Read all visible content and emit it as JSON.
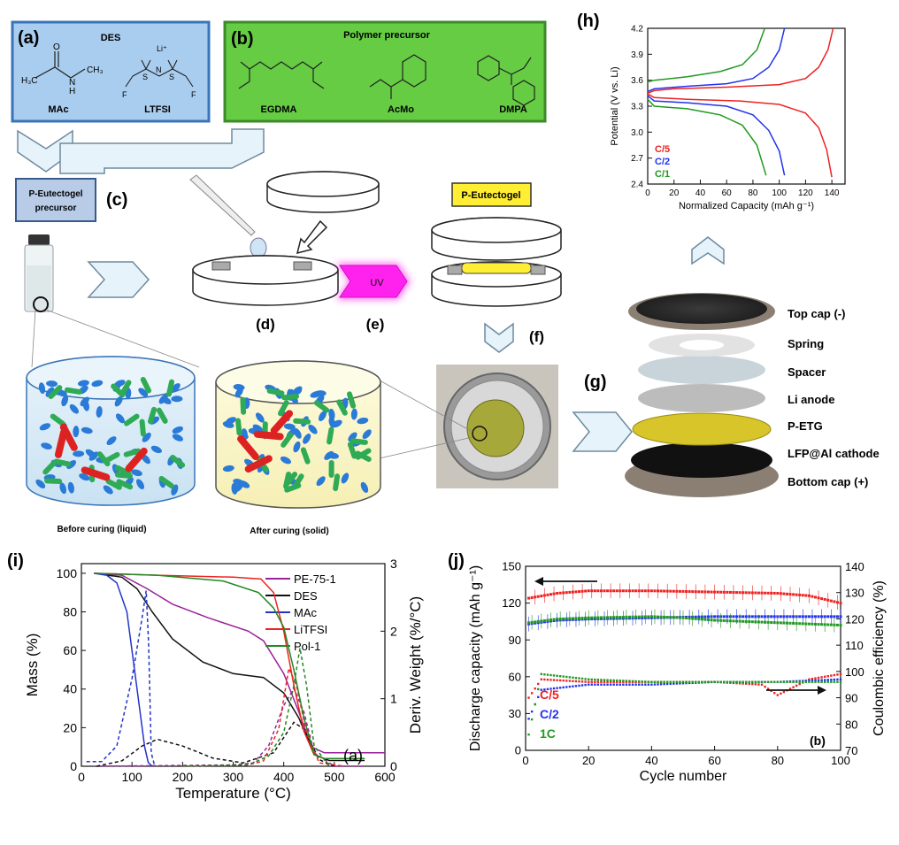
{
  "panels": {
    "a": {
      "letter": "(a)",
      "title": "DES",
      "mols": [
        "MAc",
        "LTFSI"
      ],
      "li": "Li⁺"
    },
    "b": {
      "letter": "(b)",
      "title": "Polymer precursor",
      "mols": [
        "EGDMA",
        "AcMo",
        "DMPA"
      ]
    },
    "c": {
      "letter": "(c)",
      "label_l1": "P-Eutectogel",
      "label_l2": "precursor"
    },
    "d": {
      "letter": "(d)"
    },
    "e": {
      "letter": "(e)",
      "uv": "UV"
    },
    "f": {
      "letter": "(f)",
      "label": "P-Eutectogel"
    },
    "g": {
      "letter": "(g)",
      "layers": [
        "Top cap (-)",
        "Spring",
        "Spacer",
        "Li anode",
        "P-ETG",
        "LFP@Al cathode",
        "Bottom cap (+)"
      ]
    },
    "h": {
      "letter": "(h)"
    },
    "i": {
      "letter": "(i)"
    },
    "j": {
      "letter": "(j)"
    }
  },
  "captions": {
    "before": "Before curing (liquid)",
    "after": "After curing (solid)"
  },
  "colors": {
    "blue_box": "#a9cdef",
    "green_box": "#66cc44",
    "yellow": "#ffee33",
    "uv": "#ff22ee"
  },
  "chart_data": [
    {
      "id": "h",
      "type": "line",
      "xlabel": "Normalized Capacity (mAh g⁻¹)",
      "ylabel": "Potential (V vs. Li)",
      "xlim": [
        0,
        150
      ],
      "ylim": [
        2.4,
        4.2
      ],
      "xticks": [
        0,
        20,
        40,
        60,
        80,
        100,
        120,
        140
      ],
      "yticks": [
        2.4,
        2.7,
        3.0,
        3.3,
        3.6,
        3.9,
        4.2
      ],
      "series": [
        {
          "name": "C/5",
          "color": "#ee2222",
          "charge": [
            [
              0,
              3.45
            ],
            [
              5,
              3.48
            ],
            [
              20,
              3.5
            ],
            [
              60,
              3.52
            ],
            [
              100,
              3.55
            ],
            [
              120,
              3.62
            ],
            [
              130,
              3.75
            ],
            [
              137,
              3.95
            ],
            [
              141,
              4.2
            ]
          ],
          "discharge": [
            [
              0,
              3.44
            ],
            [
              5,
              3.4
            ],
            [
              30,
              3.38
            ],
            [
              70,
              3.36
            ],
            [
              100,
              3.32
            ],
            [
              120,
              3.22
            ],
            [
              130,
              3.05
            ],
            [
              136,
              2.8
            ],
            [
              140,
              2.48
            ]
          ]
        },
        {
          "name": "C/2",
          "color": "#2233ee",
          "charge": [
            [
              0,
              3.47
            ],
            [
              5,
              3.5
            ],
            [
              30,
              3.53
            ],
            [
              60,
              3.56
            ],
            [
              80,
              3.62
            ],
            [
              92,
              3.75
            ],
            [
              100,
              3.95
            ],
            [
              104,
              4.2
            ]
          ],
          "discharge": [
            [
              0,
              3.42
            ],
            [
              5,
              3.36
            ],
            [
              30,
              3.34
            ],
            [
              60,
              3.3
            ],
            [
              80,
              3.2
            ],
            [
              92,
              3.02
            ],
            [
              100,
              2.78
            ],
            [
              104,
              2.5
            ]
          ]
        },
        {
          "name": "C/1",
          "color": "#229922",
          "charge": [
            [
              0,
              3.58
            ],
            [
              5,
              3.6
            ],
            [
              30,
              3.64
            ],
            [
              55,
              3.7
            ],
            [
              72,
              3.78
            ],
            [
              83,
              3.95
            ],
            [
              89,
              4.2
            ]
          ],
          "discharge": [
            [
              0,
              3.38
            ],
            [
              5,
              3.3
            ],
            [
              30,
              3.27
            ],
            [
              55,
              3.2
            ],
            [
              72,
              3.08
            ],
            [
              83,
              2.85
            ],
            [
              90,
              2.5
            ]
          ]
        }
      ]
    },
    {
      "id": "i",
      "type": "line",
      "xlabel": "Temperature (°C)",
      "ylabel": "Mass (%)",
      "y2label": "Deriv. Weight (%/°C)",
      "annotation": "(a)",
      "xlim": [
        0,
        600
      ],
      "ylim": [
        0,
        105
      ],
      "y2lim": [
        0,
        3
      ],
      "xticks": [
        0,
        100,
        200,
        300,
        400,
        500,
        600
      ],
      "yticks": [
        0,
        20,
        40,
        60,
        80,
        100
      ],
      "y2ticks": [
        0,
        1,
        2,
        3
      ],
      "series": [
        {
          "name": "PE-75-1",
          "color": "#992299",
          "mass": [
            [
              25,
              100
            ],
            [
              80,
              99
            ],
            [
              130,
              92
            ],
            [
              180,
              84
            ],
            [
              250,
              77
            ],
            [
              330,
              70
            ],
            [
              360,
              65
            ],
            [
              400,
              48
            ],
            [
              430,
              28
            ],
            [
              455,
              10
            ],
            [
              480,
              7
            ],
            [
              600,
              7
            ]
          ],
          "deriv": [
            [
              30,
              0
            ],
            [
              300,
              0.02
            ],
            [
              340,
              0.05
            ],
            [
              370,
              0.3
            ],
            [
              400,
              0.9
            ],
            [
              420,
              1.15
            ],
            [
              440,
              0.8
            ],
            [
              460,
              0.2
            ],
            [
              500,
              0
            ],
            [
              560,
              0
            ]
          ]
        },
        {
          "name": "DES",
          "color": "#111111",
          "mass": [
            [
              25,
              100
            ],
            [
              80,
              98
            ],
            [
              110,
              92
            ],
            [
              140,
              80
            ],
            [
              180,
              66
            ],
            [
              240,
              54
            ],
            [
              300,
              48
            ],
            [
              360,
              46
            ],
            [
              400,
              38
            ],
            [
              430,
              25
            ],
            [
              460,
              6
            ],
            [
              490,
              3
            ],
            [
              560,
              3
            ]
          ],
          "deriv": [
            [
              30,
              0
            ],
            [
              80,
              0.08
            ],
            [
              120,
              0.3
            ],
            [
              150,
              0.4
            ],
            [
              200,
              0.3
            ],
            [
              260,
              0.12
            ],
            [
              320,
              0.05
            ],
            [
              380,
              0.2
            ],
            [
              420,
              0.65
            ],
            [
              440,
              0.55
            ],
            [
              470,
              0.1
            ],
            [
              500,
              0
            ]
          ]
        },
        {
          "name": "MAc",
          "color": "#2233cc",
          "mass": [
            [
              25,
              100
            ],
            [
              50,
              99
            ],
            [
              70,
              95
            ],
            [
              90,
              80
            ],
            [
              110,
              40
            ],
            [
              125,
              10
            ],
            [
              132,
              2
            ],
            [
              140,
              0
            ]
          ],
          "deriv": [
            [
              10,
              0.07
            ],
            [
              40,
              0.07
            ],
            [
              70,
              0.3
            ],
            [
              100,
              1.3
            ],
            [
              120,
              2.2
            ],
            [
              128,
              2.6
            ],
            [
              133,
              1.8
            ],
            [
              138,
              0.2
            ],
            [
              145,
              0
            ]
          ]
        },
        {
          "name": "LiTFSI",
          "color": "#ee2222",
          "mass": [
            [
              25,
              100
            ],
            [
              150,
              99
            ],
            [
              300,
              98
            ],
            [
              355,
              97
            ],
            [
              380,
              90
            ],
            [
              400,
              70
            ],
            [
              420,
              42
            ],
            [
              440,
              18
            ],
            [
              460,
              6
            ],
            [
              480,
              4
            ],
            [
              560,
              4
            ]
          ],
          "deriv": [
            [
              200,
              0
            ],
            [
              330,
              0.02
            ],
            [
              360,
              0.08
            ],
            [
              390,
              0.55
            ],
            [
              410,
              1.45
            ],
            [
              425,
              1.2
            ],
            [
              445,
              0.5
            ],
            [
              470,
              0.05
            ],
            [
              520,
              0
            ]
          ]
        },
        {
          "name": "Pol-1",
          "color": "#228822",
          "mass": [
            [
              25,
              100
            ],
            [
              150,
              99
            ],
            [
              280,
              96
            ],
            [
              350,
              90
            ],
            [
              380,
              82
            ],
            [
              400,
              72
            ],
            [
              420,
              50
            ],
            [
              440,
              25
            ],
            [
              460,
              6
            ],
            [
              480,
              4
            ],
            [
              560,
              4
            ]
          ],
          "deriv": [
            [
              200,
              0
            ],
            [
              330,
              0.02
            ],
            [
              370,
              0.15
            ],
            [
              400,
              0.5
            ],
            [
              420,
              1.2
            ],
            [
              432,
              1.75
            ],
            [
              445,
              1.2
            ],
            [
              460,
              0.3
            ],
            [
              490,
              0
            ]
          ]
        }
      ]
    },
    {
      "id": "j",
      "type": "scatter",
      "xlabel": "Cycle number",
      "ylabel": "Discharge capacity (mAh g⁻¹)",
      "y2label": "Coulombic efficiency (%)",
      "annotation": "(b)",
      "xlim": [
        0,
        100
      ],
      "ylim": [
        0,
        150
      ],
      "y2lim": [
        70,
        140
      ],
      "xticks": [
        0,
        20,
        40,
        60,
        80,
        100
      ],
      "yticks": [
        0,
        30,
        60,
        90,
        120,
        150
      ],
      "y2ticks": [
        70,
        80,
        90,
        100,
        110,
        120,
        130,
        140
      ],
      "series": [
        {
          "name": "C/5",
          "color": "#ee2222",
          "capacity": [
            [
              1,
              124
            ],
            [
              10,
              128
            ],
            [
              20,
              130
            ],
            [
              40,
              130
            ],
            [
              60,
              129
            ],
            [
              80,
              128
            ],
            [
              90,
              126
            ],
            [
              95,
              123
            ],
            [
              100,
              120
            ]
          ],
          "ce": [
            [
              1,
              90
            ],
            [
              5,
              97
            ],
            [
              20,
              96
            ],
            [
              40,
              96
            ],
            [
              60,
              96
            ],
            [
              75,
              95
            ],
            [
              80,
              91
            ],
            [
              85,
              94
            ],
            [
              90,
              97
            ],
            [
              100,
              99
            ]
          ]
        },
        {
          "name": "C/2",
          "color": "#2233ee",
          "capacity": [
            [
              1,
              103
            ],
            [
              10,
              106
            ],
            [
              20,
              107
            ],
            [
              40,
              108
            ],
            [
              60,
              109
            ],
            [
              80,
              109
            ],
            [
              100,
              109
            ]
          ],
          "ce": [
            [
              1,
              82
            ],
            [
              5,
              93
            ],
            [
              20,
              95
            ],
            [
              40,
              95
            ],
            [
              60,
              96
            ],
            [
              80,
              96
            ],
            [
              100,
              97
            ]
          ]
        },
        {
          "name": "1C",
          "color": "#229922",
          "capacity": [
            [
              1,
              104
            ],
            [
              10,
              107
            ],
            [
              20,
              108
            ],
            [
              40,
              109
            ],
            [
              50,
              108
            ],
            [
              60,
              106
            ],
            [
              80,
              104
            ],
            [
              100,
              102
            ]
          ],
          "ce": [
            [
              1,
              76
            ],
            [
              5,
              99
            ],
            [
              20,
              97
            ],
            [
              40,
              96
            ],
            [
              60,
              96
            ],
            [
              80,
              96
            ],
            [
              100,
              96
            ]
          ]
        }
      ]
    }
  ]
}
